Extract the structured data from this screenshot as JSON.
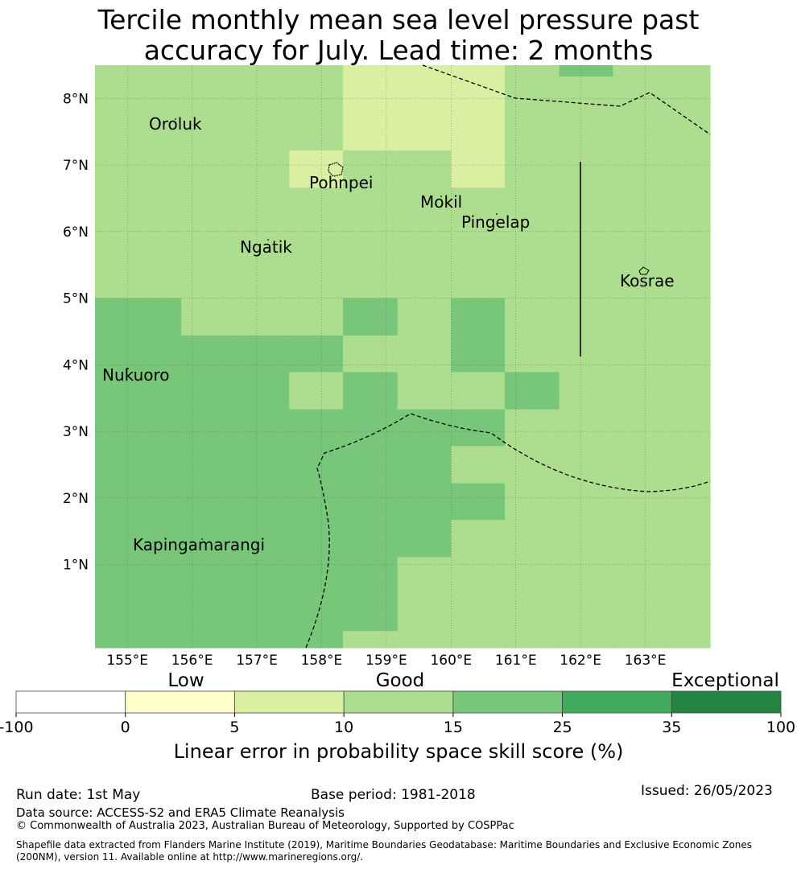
{
  "title_line1": "Tercile monthly mean sea level pressure past",
  "title_line2": "accuracy for July. Lead time: 2 months",
  "map": {
    "lon_range": [
      154.5,
      164.0
    ],
    "lat_range": [
      -0.25,
      8.5
    ],
    "lat_ticks": [
      "8°N",
      "7°N",
      "6°N",
      "5°N",
      "4°N",
      "3°N",
      "2°N",
      "1°N"
    ],
    "lon_ticks": [
      "155°E",
      "156°E",
      "157°E",
      "158°E",
      "159°E",
      "160°E",
      "161°E",
      "162°E",
      "163°E"
    ],
    "places": [
      {
        "name": "Oroluk",
        "lon": 155.8,
        "lat": 7.55
      },
      {
        "name": "Pohnpei",
        "lon": 158.2,
        "lat": 6.9
      },
      {
        "name": "Mokil",
        "lon": 159.8,
        "lat": 6.35
      },
      {
        "name": "Pingelap",
        "lon": 160.7,
        "lat": 6.2
      },
      {
        "name": "Ngatik",
        "lon": 157.2,
        "lat": 5.6
      },
      {
        "name": "Kosrae",
        "lon": 163.0,
        "lat": 5.3
      },
      {
        "name": "Nukuoro",
        "lon": 155.0,
        "lat": 3.9
      },
      {
        "name": "Kapingamarangi",
        "lon": 154.9,
        "lat": 1.05
      }
    ],
    "grid_cells": {
      "lon_edges": [
        154.5,
        155.83,
        156.67,
        157.5,
        158.33,
        159.17,
        160.0,
        160.83,
        161.67,
        162.5,
        163.33,
        164.0
      ],
      "lat_edges": [
        8.5,
        8.33,
        7.72,
        7.22,
        6.66,
        6.11,
        5.55,
        5.0,
        4.44,
        3.89,
        3.33,
        2.78,
        2.22,
        1.67,
        1.11,
        0.55,
        0.0,
        -0.25
      ],
      "classes": [
        [
          3,
          3,
          3,
          3,
          2,
          2,
          2,
          3,
          4,
          3,
          3
        ],
        [
          3,
          3,
          3,
          3,
          2,
          2,
          2,
          3,
          3,
          3,
          3
        ],
        [
          3,
          3,
          3,
          3,
          2,
          2,
          2,
          3,
          3,
          3,
          3
        ],
        [
          3,
          3,
          3,
          2,
          3,
          3,
          2,
          3,
          3,
          3,
          3
        ],
        [
          3,
          3,
          3,
          3,
          3,
          3,
          3,
          3,
          3,
          3,
          3
        ],
        [
          3,
          3,
          3,
          3,
          3,
          3,
          3,
          3,
          3,
          3,
          3
        ],
        [
          3,
          3,
          3,
          3,
          3,
          3,
          3,
          3,
          3,
          3,
          3
        ],
        [
          4,
          3,
          3,
          3,
          4,
          3,
          4,
          3,
          3,
          3,
          3
        ],
        [
          4,
          4,
          4,
          4,
          3,
          3,
          4,
          3,
          3,
          3,
          3
        ],
        [
          4,
          4,
          4,
          3,
          4,
          3,
          3,
          4,
          3,
          3,
          3
        ],
        [
          4,
          4,
          4,
          4,
          4,
          4,
          4,
          3,
          3,
          3,
          3
        ],
        [
          4,
          4,
          4,
          4,
          4,
          4,
          3,
          3,
          3,
          3,
          3
        ],
        [
          4,
          4,
          4,
          4,
          4,
          4,
          4,
          3,
          3,
          3,
          3
        ],
        [
          4,
          4,
          4,
          4,
          4,
          4,
          3,
          3,
          3,
          3,
          3
        ],
        [
          4,
          4,
          4,
          4,
          4,
          3,
          3,
          3,
          3,
          3,
          3
        ],
        [
          4,
          4,
          4,
          4,
          4,
          3,
          3,
          3,
          3,
          3,
          3
        ],
        [
          4,
          4,
          4,
          4,
          3,
          3,
          3,
          3,
          3,
          3,
          3
        ]
      ]
    }
  },
  "legend": {
    "category_labels": [
      "Low",
      "Good",
      "Exceptional"
    ],
    "boundaries": [
      "-100",
      "0",
      "5",
      "10",
      "15",
      "25",
      "35",
      "100"
    ],
    "colors": [
      "#ffffff",
      "#ffffcc",
      "#d9f0a3",
      "#addd8e",
      "#78c679",
      "#41ab5d",
      "#238443"
    ],
    "axis_label": "Linear error in probability space skill score (%)"
  },
  "footer": {
    "run_date": "Run date: 1st May",
    "base_period": "Base period: 1981-2018",
    "issued": "Issued: 26/05/2023",
    "data_source": "Data source: ACCESS-S2 and ERA5 Climate Reanalysis",
    "copyright": "© Commonwealth of Australia 2023, Australian Bureau of Meteorology, Supported by COSPPac",
    "shapefile": "Shapefile data extracted from Flanders Marine Institute (2019), Maritime Boundaries Geodatabase: Maritime Boundaries and Exclusive Economic Zones (200NM), version 11. Available online at http://www.marineregions.org/."
  }
}
